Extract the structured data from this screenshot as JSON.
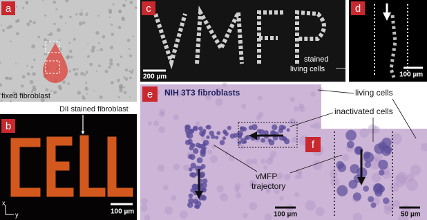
{
  "panels": {
    "a": {
      "label": "a",
      "caption": "fixed fibroblast"
    },
    "b": {
      "label": "b",
      "caption": "DiI stained fibroblast",
      "scale_bar": "100 µm",
      "axis_x": "x",
      "axis_y": "y"
    },
    "c": {
      "label": "c",
      "scale_bar": "200 µm",
      "callout": [
        "stained",
        "living cells"
      ]
    },
    "d": {
      "label": "d",
      "scale_bar": "100 µm"
    },
    "e": {
      "label": "e",
      "title": "NIH 3T3 fibroblasts",
      "scale_bar": "100 µm"
    },
    "f": {
      "label": "f",
      "scale_bar": "50 µm"
    }
  },
  "callouts": {
    "living_cells": "living cells",
    "inactivated_cells": "inactivated cells",
    "trajectory": [
      "vMFP",
      "trajectory"
    ]
  }
}
